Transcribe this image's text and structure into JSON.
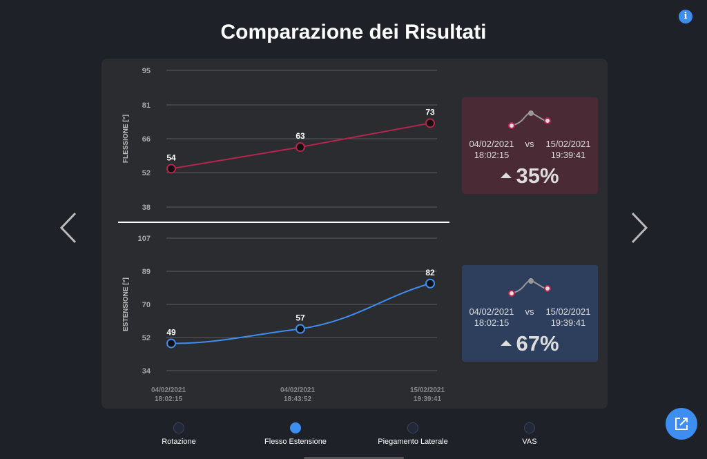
{
  "title": "Comparazione dei Risultati",
  "info_label": "i",
  "chart_data": [
    {
      "type": "line",
      "ylabel": "FLESSIONE [°]",
      "yticks": [
        95,
        81,
        66,
        52,
        38
      ],
      "ylim": [
        38,
        95
      ],
      "x": [
        "04/02/2021 18:02:15",
        "04/02/2021 18:43:52",
        "15/02/2021 19:39:41"
      ],
      "series": [
        {
          "values": [
            54,
            63,
            73
          ],
          "color": "#b8244e"
        }
      ]
    },
    {
      "type": "line",
      "ylabel": "ESTENSIONE [°]",
      "yticks": [
        107,
        89,
        70,
        52,
        34
      ],
      "ylim": [
        34,
        107
      ],
      "x": [
        "04/02/2021 18:02:15",
        "04/02/2021 18:43:52",
        "15/02/2021 19:39:41"
      ],
      "series": [
        {
          "values": [
            49,
            57,
            82
          ],
          "color": "#3d8ef0"
        }
      ]
    }
  ],
  "xaxis": {
    "ticks": [
      {
        "date": "04/02/2021",
        "time": "18:02:15"
      },
      {
        "date": "04/02/2021",
        "time": "18:43:52"
      },
      {
        "date": "15/02/2021",
        "time": "19:39:41"
      }
    ]
  },
  "cards": {
    "flex": {
      "date1": "04/02/2021",
      "time1": "18:02:15",
      "vs": "vs",
      "date2": "15/02/2021",
      "time2": "19:39:41",
      "percent": "35%",
      "color": "#4a2a35"
    },
    "ext": {
      "date1": "04/02/2021",
      "time1": "18:02:15",
      "vs": "vs",
      "date2": "15/02/2021",
      "time2": "19:39:41",
      "percent": "67%",
      "color": "#2e3f5e"
    }
  },
  "tabs": [
    {
      "label": "Rotazione",
      "active": false
    },
    {
      "label": "Flesso Estensione",
      "active": true
    },
    {
      "label": "Piegamento Laterale",
      "active": false
    },
    {
      "label": "VAS",
      "active": false
    }
  ],
  "icons": {
    "info": "info-icon",
    "prev": "chevron-left-icon",
    "next": "chevron-right-icon",
    "share": "external-link-icon"
  }
}
